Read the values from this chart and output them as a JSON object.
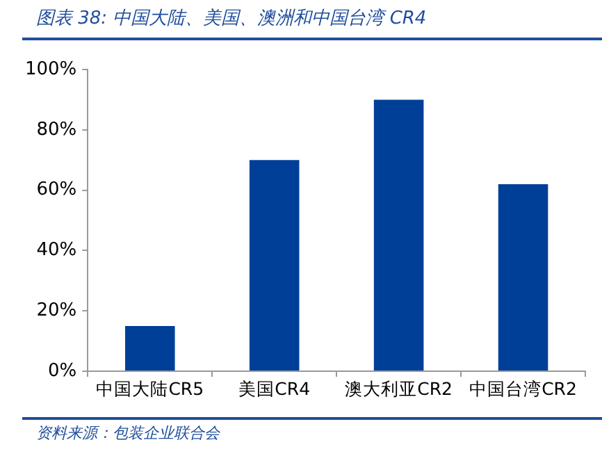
{
  "chart_data": {
    "type": "bar",
    "title": "图表 38: 中国大陆、美国、澳洲和中国台湾 CR4",
    "categories": [
      "中国大陆CR5",
      "美国CR4",
      "澳大利亚CR2",
      "中国台湾CR2"
    ],
    "values": [
      15,
      70,
      90,
      62
    ],
    "color": "#003f98",
    "ylim": [
      0,
      100
    ],
    "yticks": [
      {
        "value": 0,
        "label": "0%"
      },
      {
        "value": 20,
        "label": "20%"
      },
      {
        "value": 40,
        "label": "40%"
      },
      {
        "value": 60,
        "label": "60%"
      },
      {
        "value": 80,
        "label": "80%"
      },
      {
        "value": 100,
        "label": "100%"
      }
    ],
    "grid": false,
    "legend": false,
    "annotations": [
      "资料来源：包装企业联合会"
    ]
  }
}
